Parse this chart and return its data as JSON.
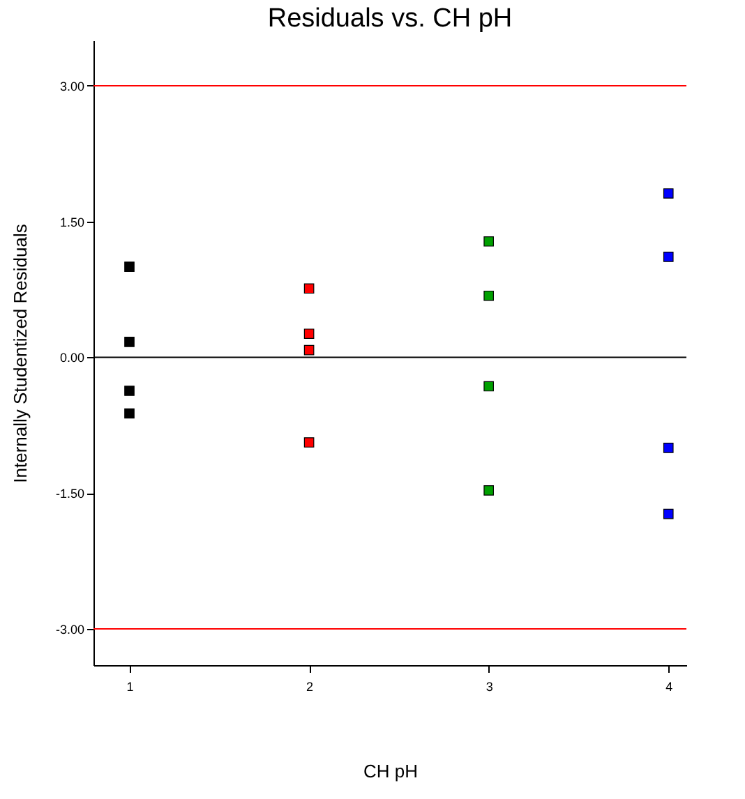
{
  "chart_data": {
    "type": "scatter",
    "title": "Residuals vs. CH pH",
    "xlabel": "CH pH",
    "ylabel": "Internally Studentized Residuals",
    "xlim": [
      0.8,
      4.1
    ],
    "xticks": [
      1,
      2,
      3,
      4
    ],
    "ylim": [
      -3.4,
      3.5
    ],
    "yticks": [
      {
        "value": -3,
        "label": "-3.00"
      },
      {
        "value": -1.5,
        "label": "-1.50"
      },
      {
        "value": 0,
        "label": "0.00"
      },
      {
        "value": 1.5,
        "label": "1.50"
      },
      {
        "value": 3,
        "label": "3.00"
      }
    ],
    "marker": "square",
    "grid": false,
    "series": [
      {
        "color": "#000000",
        "x": [
          1,
          1,
          1,
          1
        ],
        "values": [
          1.0,
          0.17,
          -0.37,
          -0.62
        ]
      },
      {
        "color": "#ff0000",
        "x": [
          2,
          2,
          2,
          2
        ],
        "values": [
          0.76,
          0.26,
          0.08,
          -0.94
        ]
      },
      {
        "color": "#00a000",
        "x": [
          3,
          3,
          3,
          3
        ],
        "values": [
          1.28,
          0.68,
          -0.32,
          -1.47
        ]
      },
      {
        "color": "#0000ff",
        "x": [
          4,
          4,
          4,
          4
        ],
        "values": [
          1.81,
          1.11,
          -1.0,
          -1.73
        ]
      }
    ],
    "ref_lines": [
      {
        "axis": "y",
        "value": 3,
        "color": "#ff0000"
      },
      {
        "axis": "y",
        "value": 0,
        "color": "#000000"
      },
      {
        "axis": "y",
        "value": -3,
        "color": "#ff0000"
      }
    ]
  }
}
